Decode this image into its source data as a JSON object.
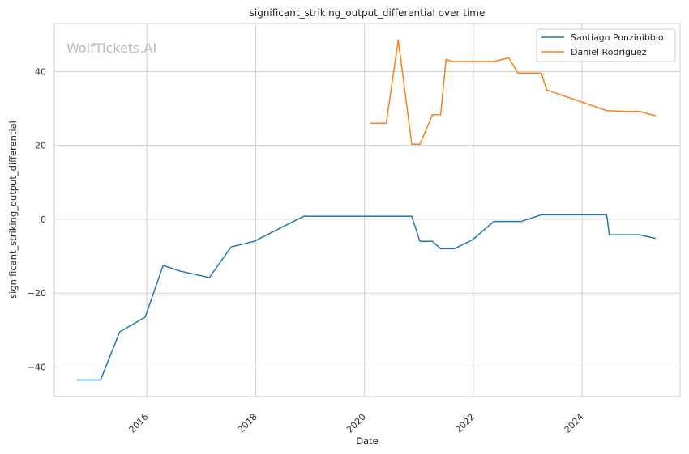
{
  "watermark": "WolfTickets.AI",
  "chart_data": {
    "type": "line",
    "title": "significant_striking_output_differential over time",
    "xlabel": "Date",
    "ylabel": "significant_striking_output_differential",
    "xlim": [
      2014.3,
      2025.8
    ],
    "ylim": [
      -48,
      53
    ],
    "x_ticks": [
      2016,
      2018,
      2020,
      2022,
      2024
    ],
    "x_tick_labels": [
      "2016",
      "2018",
      "2020",
      "2022",
      "2024"
    ],
    "y_ticks": [
      -40,
      -20,
      0,
      20,
      40
    ],
    "y_tick_labels": [
      "−40",
      "−20",
      "0",
      "20",
      "40"
    ],
    "grid": true,
    "legend_position": "top-right",
    "series": [
      {
        "name": "Santiago Ponzinibbio",
        "color": "#1f77b4",
        "x": [
          2014.72,
          2015.15,
          2015.5,
          2015.97,
          2016.3,
          2016.6,
          2017.15,
          2017.55,
          2017.97,
          2018.88,
          2020.87,
          2021.02,
          2021.25,
          2021.4,
          2021.65,
          2021.98,
          2022.38,
          2022.88,
          2023.25,
          2024.45,
          2024.5,
          2025.05,
          2025.35
        ],
        "y": [
          -43.5,
          -43.5,
          -30.5,
          -26.5,
          -12.5,
          -14.0,
          -15.8,
          -7.5,
          -6.0,
          0.8,
          0.8,
          -6.0,
          -6.0,
          -8.0,
          -8.0,
          -5.6,
          -0.6,
          -0.6,
          1.2,
          1.2,
          -4.2,
          -4.2,
          -5.2
        ]
      },
      {
        "name": "Daniel Rodriguez",
        "color": "#ff7f0e",
        "x": [
          2020.1,
          2020.4,
          2020.62,
          2020.87,
          2021.02,
          2021.25,
          2021.4,
          2021.5,
          2021.62,
          2022.38,
          2022.65,
          2022.82,
          2023.25,
          2023.35,
          2024.45,
          2024.75,
          2025.05,
          2025.35
        ],
        "y": [
          26.0,
          26.0,
          48.5,
          20.3,
          20.3,
          28.3,
          28.3,
          43.3,
          42.7,
          42.7,
          43.7,
          39.6,
          39.6,
          35.0,
          29.4,
          29.2,
          29.2,
          28.0
        ]
      }
    ]
  }
}
